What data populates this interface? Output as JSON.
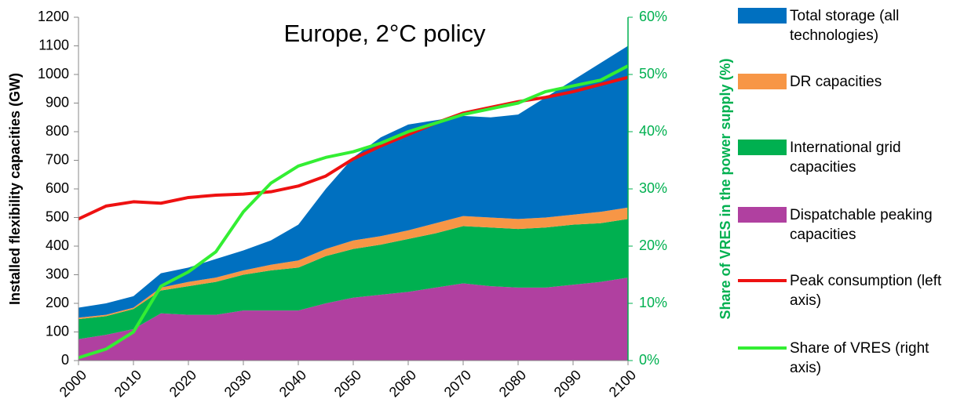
{
  "chart_data": {
    "type": "area",
    "title": "Europe, 2°C policy",
    "y_label": "Installed flexibility capacities (GW)",
    "y2_label": "Share of VRES in the power supply (%)",
    "x": [
      2000,
      2005,
      2010,
      2015,
      2020,
      2025,
      2030,
      2035,
      2040,
      2045,
      2050,
      2055,
      2060,
      2065,
      2070,
      2075,
      2080,
      2085,
      2090,
      2095,
      2100
    ],
    "xlim": [
      2000,
      2100
    ],
    "xticks": [
      2000,
      2010,
      2020,
      2030,
      2040,
      2050,
      2060,
      2070,
      2080,
      2090,
      2100
    ],
    "ylim": [
      0,
      1200
    ],
    "yticks": [
      0,
      100,
      200,
      300,
      400,
      500,
      600,
      700,
      800,
      900,
      1000,
      1100,
      1200
    ],
    "y2lim": [
      0,
      60
    ],
    "y2ticks": [
      {
        "value": 0,
        "label": "0%"
      },
      {
        "value": 10,
        "label": "10%"
      },
      {
        "value": 20,
        "label": "20%"
      },
      {
        "value": 30,
        "label": "30%"
      },
      {
        "value": 40,
        "label": "40%"
      },
      {
        "value": 50,
        "label": "50%"
      },
      {
        "value": 60,
        "label": "60%"
      }
    ],
    "stacked": true,
    "series": [
      {
        "name": "Total storage (all technologies)",
        "type": "area",
        "color": "#0070c0",
        "values": [
          35,
          40,
          40,
          50,
          50,
          65,
          70,
          85,
          125,
          210,
          290,
          345,
          370,
          360,
          350,
          350,
          365,
          420,
          470,
          520,
          565
        ]
      },
      {
        "name": "DR capacities",
        "type": "area",
        "color": "#f79646",
        "values": [
          5,
          5,
          5,
          10,
          15,
          15,
          15,
          20,
          25,
          25,
          30,
          30,
          30,
          35,
          35,
          35,
          35,
          35,
          35,
          40,
          40
        ]
      },
      {
        "name": "International grid capacities",
        "type": "area",
        "color": "#00b050",
        "values": [
          70,
          65,
          70,
          80,
          100,
          115,
          125,
          140,
          150,
          165,
          170,
          175,
          185,
          190,
          200,
          205,
          205,
          210,
          210,
          205,
          205
        ]
      },
      {
        "name": "Dispatchable peaking capacities",
        "type": "area",
        "color": "#b040a0",
        "values": [
          75,
          90,
          110,
          165,
          160,
          160,
          175,
          175,
          175,
          200,
          220,
          230,
          240,
          255,
          270,
          260,
          255,
          255,
          265,
          275,
          290
        ]
      },
      {
        "name": "Peak consumption (left axis)",
        "type": "line",
        "color": "#ee1111",
        "values": [
          495,
          540,
          555,
          550,
          570,
          578,
          582,
          590,
          610,
          645,
          705,
          750,
          790,
          830,
          865,
          885,
          905,
          920,
          940,
          965,
          990
        ]
      },
      {
        "name": "Share of VRES (right axis)",
        "type": "line",
        "axis": "y2",
        "color": "#33ee33",
        "values": [
          0.5,
          2,
          5,
          13,
          15.5,
          19,
          26,
          31,
          34,
          35.5,
          36.5,
          38,
          40,
          41.5,
          43,
          44,
          45,
          47,
          48,
          49,
          51.5
        ]
      }
    ]
  }
}
